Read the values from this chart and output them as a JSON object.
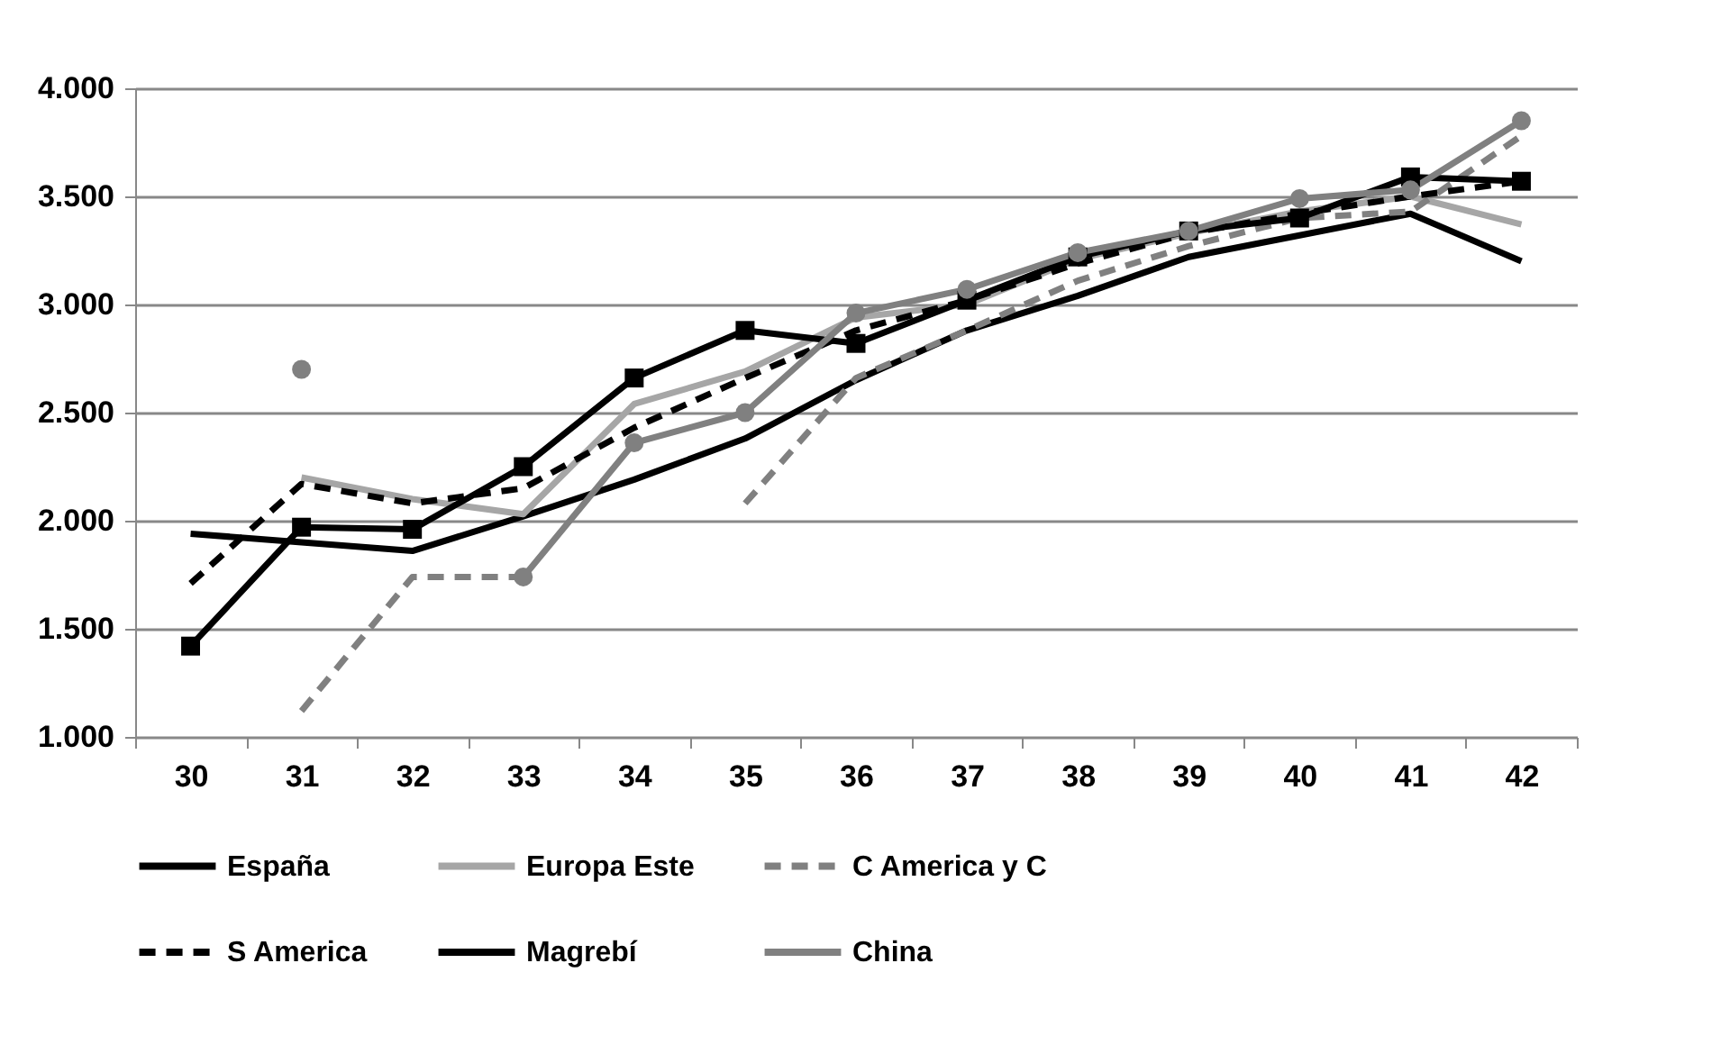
{
  "chart_data": {
    "type": "line",
    "categories": [
      "30",
      "31",
      "32",
      "33",
      "34",
      "35",
      "36",
      "37",
      "38",
      "39",
      "40",
      "41",
      "42"
    ],
    "ylim": [
      1000,
      4000
    ],
    "yticks": [
      {
        "value": 1000,
        "label": "1.000"
      },
      {
        "value": 1500,
        "label": "1.500"
      },
      {
        "value": 2000,
        "label": "2.000"
      },
      {
        "value": 2500,
        "label": "2.500"
      },
      {
        "value": 3000,
        "label": "3.000"
      },
      {
        "value": 3500,
        "label": "3.500"
      },
      {
        "value": 4000,
        "label": "4.000"
      }
    ],
    "grid": "y",
    "legend": "bottom",
    "series": [
      {
        "name": "España",
        "color": "#000000",
        "line_style": "solid",
        "marker": "none",
        "values": [
          1940,
          1900,
          1860,
          2020,
          2190,
          2380,
          2650,
          2880,
          3040,
          3220,
          3320,
          3420,
          3200
        ]
      },
      {
        "name": "Europa Este",
        "color": "#a6a6a6",
        "line_style": "solid",
        "marker": "none",
        "values": [
          null,
          2200,
          2100,
          2030,
          2540,
          2690,
          2940,
          3000,
          3210,
          3330,
          3430,
          3500,
          3370
        ]
      },
      {
        "name": "C America y C",
        "color": "#808080",
        "line_style": "dashed",
        "marker": "none",
        "values": [
          null,
          1120,
          1740,
          1740,
          null,
          2080,
          2660,
          2880,
          3110,
          3270,
          3400,
          3430,
          3780
        ]
      },
      {
        "name": "S America",
        "color": "#000000",
        "line_style": "dashed",
        "marker": "none",
        "values": [
          1710,
          2170,
          2080,
          2150,
          2430,
          2660,
          2880,
          3020,
          3190,
          3330,
          3420,
          3500,
          3570
        ]
      },
      {
        "name": "Magrebí",
        "color": "#000000",
        "line_style": "solid",
        "marker": "square",
        "values": [
          1420,
          1970,
          1960,
          2250,
          2660,
          2880,
          2820,
          3020,
          3220,
          3340,
          3400,
          3590,
          3570
        ]
      },
      {
        "name": "China",
        "color": "#808080",
        "line_style": "solid",
        "marker": "circle",
        "values": [
          null,
          2700,
          null,
          1740,
          2360,
          2500,
          2960,
          3070,
          3240,
          3340,
          3490,
          3530,
          3850
        ]
      }
    ]
  }
}
